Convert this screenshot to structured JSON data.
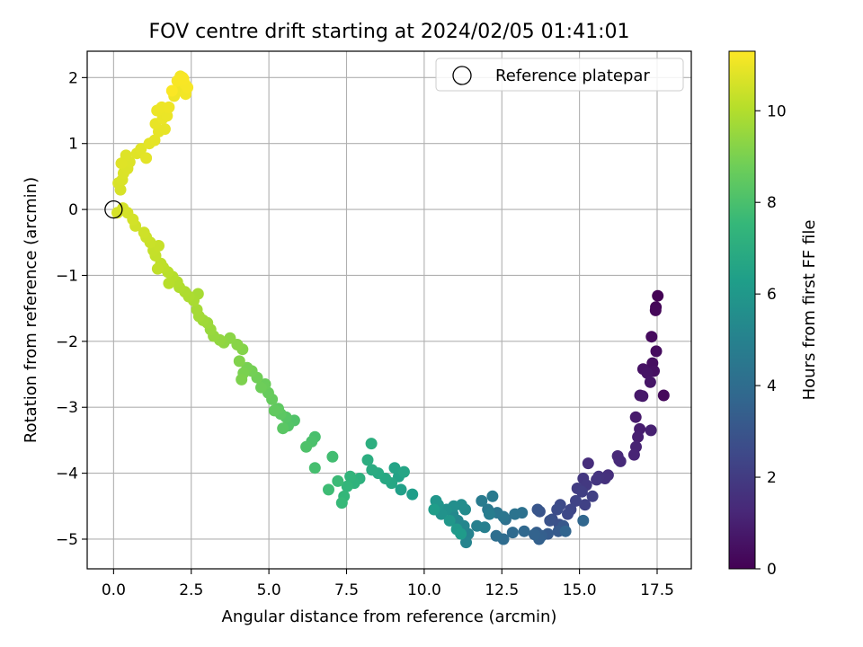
{
  "chart_data": {
    "type": "scatter",
    "title": "FOV centre drift starting at 2024/02/05 01:41:01",
    "xlabel": "Angular distance from reference (arcmin)",
    "ylabel": "Rotation from reference (arcmin)",
    "xlim": [
      -0.85,
      18.6
    ],
    "ylim": [
      -5.45,
      2.4
    ],
    "x_ticks": [
      0.0,
      2.5,
      5.0,
      7.5,
      10.0,
      12.5,
      15.0,
      17.5
    ],
    "x_tick_labels": [
      "0.0",
      "2.5",
      "5.0",
      "7.5",
      "10.0",
      "12.5",
      "15.0",
      "17.5"
    ],
    "y_ticks": [
      2,
      1,
      0,
      -1,
      -2,
      -3,
      -4,
      -5
    ],
    "y_tick_labels": [
      "2",
      "1",
      "0",
      "−1",
      "−2",
      "−3",
      "−4",
      "−5"
    ],
    "grid": true,
    "legend": {
      "position": "top-right",
      "entries": [
        {
          "label": "Reference platepar",
          "marker": "open-circle",
          "x": 0,
          "y": 0
        }
      ]
    },
    "colorbar": {
      "label": "Hours from first FF file",
      "colormap": "viridis",
      "range": [
        0,
        11.3
      ],
      "ticks": [
        0,
        2,
        4,
        6,
        8,
        10
      ],
      "tick_labels": [
        "0",
        "2",
        "4",
        "6",
        "8",
        "10"
      ]
    },
    "colormap_stops": [
      "#440154",
      "#482878",
      "#3e4989",
      "#31688e",
      "#26828e",
      "#1f9e89",
      "#35b779",
      "#6ece58",
      "#b5de2b",
      "#fde725"
    ],
    "points": [
      [
        17.52,
        -1.31,
        0.05
      ],
      [
        17.46,
        -1.48,
        0.12
      ],
      [
        17.45,
        -1.53,
        0.18
      ],
      [
        17.71,
        -2.82,
        0.25
      ],
      [
        17.32,
        -1.93,
        0.3
      ],
      [
        17.47,
        -2.15,
        0.36
      ],
      [
        17.35,
        -2.33,
        0.42
      ],
      [
        17.4,
        -2.45,
        0.48
      ],
      [
        17.05,
        -2.42,
        0.55
      ],
      [
        17.18,
        -2.48,
        0.6
      ],
      [
        17.28,
        -2.62,
        0.66
      ],
      [
        16.95,
        -2.82,
        0.72
      ],
      [
        17.03,
        -2.83,
        0.78
      ],
      [
        16.81,
        -3.15,
        0.84
      ],
      [
        16.94,
        -3.33,
        0.9
      ],
      [
        16.88,
        -3.45,
        0.96
      ],
      [
        17.3,
        -3.35,
        1.02
      ],
      [
        16.82,
        -3.6,
        1.08
      ],
      [
        16.76,
        -3.72,
        1.14
      ],
      [
        16.28,
        -3.8,
        1.22
      ],
      [
        16.23,
        -3.74,
        1.28
      ],
      [
        16.32,
        -3.82,
        1.34
      ],
      [
        15.28,
        -3.85,
        1.45
      ],
      [
        15.92,
        -4.03,
        1.52
      ],
      [
        15.82,
        -4.08,
        1.6
      ],
      [
        15.62,
        -4.05,
        1.68
      ],
      [
        15.55,
        -4.1,
        1.76
      ],
      [
        15.12,
        -4.08,
        1.84
      ],
      [
        15.22,
        -4.18,
        1.92
      ],
      [
        14.93,
        -4.23,
        2.0
      ],
      [
        15.08,
        -4.28,
        2.08
      ],
      [
        15.42,
        -4.35,
        2.15
      ],
      [
        15.18,
        -4.48,
        2.22
      ],
      [
        14.88,
        -4.42,
        2.3
      ],
      [
        14.72,
        -4.55,
        2.38
      ],
      [
        14.62,
        -4.62,
        2.46
      ],
      [
        14.38,
        -4.48,
        2.54
      ],
      [
        14.28,
        -4.55,
        2.62
      ],
      [
        14.12,
        -4.7,
        2.7
      ],
      [
        14.35,
        -4.78,
        2.78
      ],
      [
        14.05,
        -4.72,
        2.86
      ],
      [
        13.72,
        -4.58,
        2.94
      ],
      [
        13.65,
        -4.55,
        3.02
      ],
      [
        14.48,
        -4.8,
        3.1
      ],
      [
        14.32,
        -4.88,
        3.18
      ],
      [
        13.98,
        -4.92,
        3.26
      ],
      [
        13.62,
        -4.9,
        3.34
      ],
      [
        13.78,
        -4.95,
        3.42
      ],
      [
        13.7,
        -5.0,
        3.5
      ],
      [
        13.55,
        -4.93,
        3.58
      ],
      [
        14.55,
        -4.88,
        3.66
      ],
      [
        15.12,
        -4.72,
        3.74
      ],
      [
        13.22,
        -4.88,
        3.82
      ],
      [
        12.85,
        -4.9,
        3.9
      ],
      [
        12.55,
        -5.0,
        3.98
      ],
      [
        12.32,
        -4.95,
        4.06
      ],
      [
        12.62,
        -4.7,
        4.14
      ],
      [
        13.15,
        -4.6,
        4.22
      ],
      [
        12.92,
        -4.62,
        4.3
      ],
      [
        12.55,
        -4.66,
        4.38
      ],
      [
        12.35,
        -4.6,
        4.46
      ],
      [
        12.05,
        -4.55,
        4.54
      ],
      [
        12.2,
        -4.35,
        4.62
      ],
      [
        11.85,
        -4.42,
        4.7
      ],
      [
        12.1,
        -4.62,
        4.78
      ],
      [
        11.95,
        -4.82,
        4.86
      ],
      [
        11.7,
        -4.8,
        4.94
      ],
      [
        11.42,
        -4.92,
        5.02
      ],
      [
        11.35,
        -5.05,
        5.1
      ],
      [
        11.28,
        -4.8,
        5.18
      ],
      [
        11.08,
        -4.72,
        5.26
      ],
      [
        10.92,
        -4.62,
        5.34
      ],
      [
        11.32,
        -4.55,
        5.42
      ],
      [
        11.2,
        -4.48,
        5.5
      ],
      [
        10.95,
        -4.5,
        5.58
      ],
      [
        10.72,
        -4.55,
        5.66
      ],
      [
        10.55,
        -4.62,
        5.74
      ],
      [
        10.45,
        -4.48,
        5.82
      ],
      [
        10.38,
        -4.42,
        5.9
      ],
      [
        10.82,
        -4.72,
        5.98
      ],
      [
        11.05,
        -4.85,
        6.06
      ],
      [
        11.18,
        -4.92,
        6.14
      ],
      [
        10.32,
        -4.55,
        6.22
      ],
      [
        9.62,
        -4.32,
        6.3
      ],
      [
        9.25,
        -4.25,
        6.38
      ],
      [
        9.18,
        -4.05,
        6.46
      ],
      [
        9.05,
        -3.92,
        6.54
      ],
      [
        9.35,
        -3.98,
        6.62
      ],
      [
        8.95,
        -4.15,
        6.7
      ],
      [
        8.75,
        -4.08,
        6.78
      ],
      [
        8.52,
        -4.0,
        6.86
      ],
      [
        8.32,
        -3.95,
        6.94
      ],
      [
        8.18,
        -3.8,
        7.02
      ],
      [
        8.3,
        -3.55,
        7.1
      ],
      [
        7.92,
        -4.08,
        7.18
      ],
      [
        7.75,
        -4.15,
        7.26
      ],
      [
        7.62,
        -4.05,
        7.34
      ],
      [
        7.52,
        -4.2,
        7.42
      ],
      [
        7.42,
        -4.35,
        7.5
      ],
      [
        7.35,
        -4.45,
        7.58
      ],
      [
        7.22,
        -4.12,
        7.66
      ],
      [
        6.92,
        -4.25,
        7.74
      ],
      [
        7.05,
        -3.75,
        7.82
      ],
      [
        6.48,
        -3.92,
        7.9
      ],
      [
        6.48,
        -3.45,
        7.98
      ],
      [
        6.38,
        -3.52,
        8.04
      ],
      [
        6.2,
        -3.6,
        8.1
      ],
      [
        5.82,
        -3.2,
        8.16
      ],
      [
        5.62,
        -3.28,
        8.22
      ],
      [
        5.55,
        -3.15,
        8.28
      ],
      [
        5.45,
        -3.32,
        8.34
      ],
      [
        5.38,
        -3.1,
        8.4
      ],
      [
        5.3,
        -3.02,
        8.46
      ],
      [
        5.18,
        -3.05,
        8.52
      ],
      [
        5.1,
        -2.88,
        8.58
      ],
      [
        4.98,
        -2.78,
        8.64
      ],
      [
        4.88,
        -2.65,
        8.7
      ],
      [
        4.75,
        -2.7,
        8.76
      ],
      [
        4.62,
        -2.55,
        8.82
      ],
      [
        4.45,
        -2.45,
        8.88
      ],
      [
        4.3,
        -2.4,
        8.94
      ],
      [
        4.18,
        -2.48,
        9.0
      ],
      [
        4.12,
        -2.58,
        9.06
      ],
      [
        4.05,
        -2.3,
        9.12
      ],
      [
        4.15,
        -2.12,
        9.18
      ],
      [
        3.98,
        -2.05,
        9.24
      ],
      [
        3.75,
        -1.95,
        9.3
      ],
      [
        3.55,
        -2.02,
        9.36
      ],
      [
        3.42,
        -1.98,
        9.42
      ],
      [
        3.22,
        -1.92,
        9.48
      ],
      [
        3.12,
        -1.82,
        9.54
      ],
      [
        3.02,
        -1.72,
        9.6
      ],
      [
        2.88,
        -1.68,
        9.66
      ],
      [
        2.75,
        -1.62,
        9.72
      ],
      [
        2.68,
        -1.52,
        9.76
      ],
      [
        2.72,
        -1.28,
        9.8
      ],
      [
        2.58,
        -1.38,
        9.84
      ],
      [
        2.42,
        -1.32,
        9.88
      ],
      [
        2.3,
        -1.25,
        9.92
      ],
      [
        2.12,
        -1.18,
        9.96
      ],
      [
        2.05,
        -1.1,
        10.0
      ],
      [
        1.9,
        -1.02,
        10.04
      ],
      [
        1.78,
        -1.12,
        10.08
      ],
      [
        1.75,
        -0.95,
        10.12
      ],
      [
        1.6,
        -0.88,
        10.16
      ],
      [
        1.52,
        -0.82,
        10.2
      ],
      [
        1.42,
        -0.9,
        10.24
      ],
      [
        1.35,
        -0.7,
        10.28
      ],
      [
        1.28,
        -0.62,
        10.32
      ],
      [
        1.45,
        -0.55,
        10.36
      ],
      [
        1.18,
        -0.5,
        10.4
      ],
      [
        1.05,
        -0.42,
        10.44
      ],
      [
        0.98,
        -0.35,
        10.48
      ],
      [
        0.7,
        -0.25,
        10.52
      ],
      [
        0.62,
        -0.15,
        10.56
      ],
      [
        0.45,
        -0.05,
        10.58
      ],
      [
        0.3,
        0.02,
        10.6
      ],
      [
        0.12,
        -0.05,
        10.62
      ],
      [
        0.22,
        0.3,
        10.64
      ],
      [
        0.15,
        0.4,
        10.66
      ],
      [
        0.28,
        0.45,
        10.68
      ],
      [
        0.32,
        0.55,
        10.7
      ],
      [
        0.45,
        0.62,
        10.72
      ],
      [
        0.52,
        0.72,
        10.74
      ],
      [
        0.4,
        0.82,
        10.76
      ],
      [
        0.25,
        0.7,
        10.78
      ],
      [
        0.75,
        0.85,
        10.8
      ],
      [
        0.88,
        0.92,
        10.82
      ],
      [
        1.05,
        0.78,
        10.84
      ],
      [
        1.15,
        1.0,
        10.86
      ],
      [
        1.32,
        1.05,
        10.88
      ],
      [
        1.45,
        1.18,
        10.9
      ],
      [
        1.65,
        1.22,
        10.92
      ],
      [
        1.35,
        1.3,
        10.94
      ],
      [
        1.58,
        1.38,
        10.96
      ],
      [
        1.72,
        1.42,
        10.98
      ],
      [
        1.4,
        1.5,
        11.0
      ],
      [
        1.55,
        1.55,
        11.02
      ],
      [
        1.78,
        1.55,
        11.04
      ],
      [
        1.95,
        1.72,
        11.06
      ],
      [
        2.12,
        1.8,
        11.08
      ],
      [
        2.32,
        1.75,
        11.1
      ],
      [
        2.15,
        2.02,
        11.12
      ],
      [
        2.22,
        2.0,
        11.14
      ],
      [
        2.3,
        1.9,
        11.16
      ],
      [
        2.38,
        1.85,
        11.18
      ],
      [
        2.05,
        1.95,
        11.2
      ],
      [
        2.25,
        1.98,
        11.22
      ],
      [
        1.88,
        1.8,
        11.24
      ]
    ]
  }
}
